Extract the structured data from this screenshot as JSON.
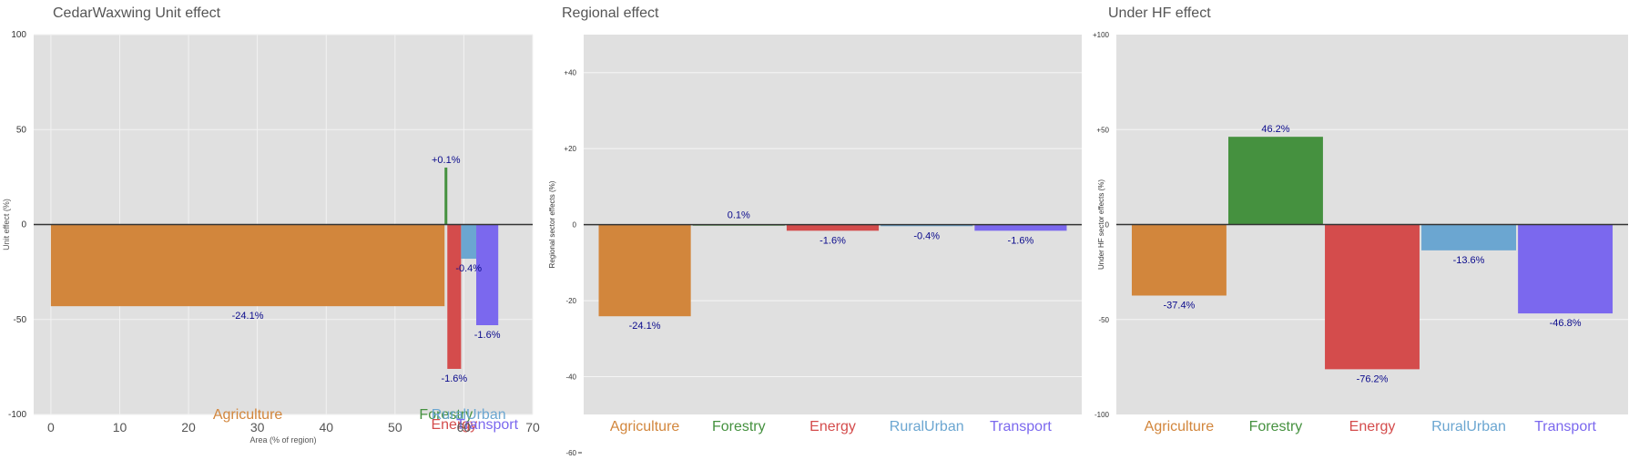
{
  "chart_data": [
    {
      "type": "bar",
      "title": "CedarWaxwing Unit effect",
      "xlabel": "Area (% of region)",
      "ylabel": "Unit effect (%)",
      "xlim": [
        -2.5,
        70
      ],
      "ylim": [
        -100,
        100
      ],
      "xticks": [
        "0",
        "10",
        "20",
        "30",
        "40",
        "50",
        "60",
        "70"
      ],
      "yticks": [
        "100",
        "50",
        "0",
        "-50",
        "-100"
      ],
      "series": [
        {
          "category": "Agriculture",
          "x_start": 0,
          "width": 57.2,
          "value": -43,
          "label": "-24.1%",
          "color": "#D2863C"
        },
        {
          "category": "Forestry",
          "x_start": 57.2,
          "width": 0.4,
          "value": 30,
          "label": "+0.1%",
          "color": "#45913F"
        },
        {
          "category": "Energy",
          "x_start": 57.6,
          "width": 2.0,
          "value": -76,
          "label": "-1.6%",
          "color": "#D44C4C"
        },
        {
          "category": "RuralUrban",
          "x_start": 59.6,
          "width": 2.2,
          "value": -18,
          "label": "-0.4%",
          "color": "#6BA6D1"
        },
        {
          "category": "Transport",
          "x_start": 61.8,
          "width": 3.2,
          "value": -53,
          "label": "-1.6%",
          "color": "#7B68EE"
        }
      ]
    },
    {
      "type": "bar",
      "title": "Regional effect",
      "ylabel": "Regional sector effects (%)",
      "ylim": [
        -60,
        50
      ],
      "yticks": [
        "+40",
        "+20",
        "0",
        "-20",
        "-40",
        "-60"
      ],
      "categories": [
        "Agriculture",
        "Forestry",
        "Energy",
        "RuralUrban",
        "Transport"
      ],
      "values": [
        -24.1,
        0.1,
        -1.6,
        -0.4,
        -1.6
      ],
      "labels": [
        "-24.1%",
        "0.1%",
        "-1.6%",
        "-0.4%",
        "-1.6%"
      ],
      "colors": [
        "#D2863C",
        "#45913F",
        "#D44C4C",
        "#6BA6D1",
        "#7B68EE"
      ]
    },
    {
      "type": "bar",
      "title": "Under HF effect",
      "ylabel": "Under HF sector effects (%)",
      "ylim": [
        -100,
        100
      ],
      "yticks": [
        "+100",
        "+50",
        "0",
        "-50",
        "-100"
      ],
      "categories": [
        "Agriculture",
        "Forestry",
        "Energy",
        "RuralUrban",
        "Transport"
      ],
      "values": [
        -37.4,
        46.2,
        -76.2,
        -13.6,
        -46.8
      ],
      "labels": [
        "-37.4%",
        "46.2%",
        "-76.2%",
        "-13.6%",
        "-46.8%"
      ],
      "colors": [
        "#D2863C",
        "#45913F",
        "#D44C4C",
        "#6BA6D1",
        "#7B68EE"
      ]
    }
  ]
}
